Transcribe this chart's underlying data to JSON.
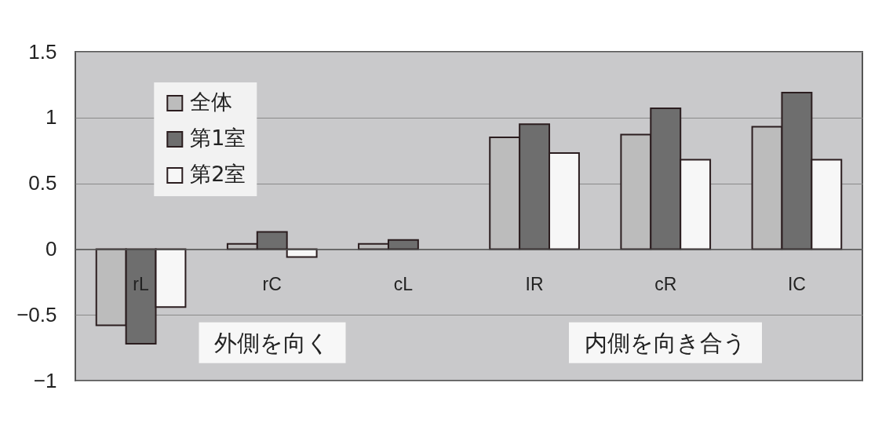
{
  "chart_data": {
    "type": "bar",
    "categories": [
      "rL",
      "rC",
      "cL",
      "IR",
      "cR",
      "IC"
    ],
    "series": [
      {
        "name": "全体",
        "color": "#bcbcbc",
        "values": [
          -0.58,
          0.04,
          0.04,
          0.85,
          0.87,
          0.93
        ]
      },
      {
        "name": "第1室",
        "color": "#6e6e6e",
        "values": [
          -0.72,
          0.13,
          0.07,
          0.95,
          1.07,
          1.19
        ]
      },
      {
        "name": "第2室",
        "color": "#f7f7f7",
        "values": [
          -0.44,
          -0.06,
          null,
          0.73,
          0.68,
          0.68
        ]
      }
    ],
    "ylim": [
      -1,
      1.5
    ],
    "yticks": [
      -1,
      -0.5,
      0,
      0.5,
      1,
      1.5
    ],
    "grid": "y",
    "legend": "top left",
    "annotations": [
      "外側を向く",
      "内側を向き合う"
    ]
  }
}
